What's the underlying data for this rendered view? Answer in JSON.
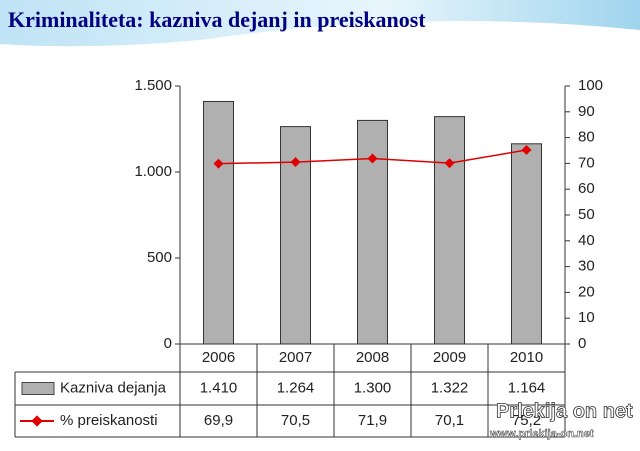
{
  "chart_data": {
    "type": "bar",
    "title": "Kriminaliteta: kazniva dejanj in preiskanost",
    "categories": [
      "2006",
      "2007",
      "2008",
      "2009",
      "2010"
    ],
    "series": [
      {
        "name": "Kazniva dejanja",
        "color": "#b0b0b0",
        "values": [
          1410,
          1264,
          1300,
          1322,
          1164
        ],
        "value_labels": [
          "1.410",
          "1.264",
          "1.300",
          "1.322",
          "1.164"
        ]
      },
      {
        "name": "% preiskanosti",
        "color": "#e00000",
        "type": "line",
        "axis": "y2",
        "values": [
          69.9,
          70.5,
          71.9,
          70.1,
          75.2
        ],
        "value_labels": [
          "69,9",
          "70,5",
          "71,9",
          "70,1",
          "75,2"
        ]
      }
    ],
    "ylim": [
      0,
      1500
    ],
    "yticks": [
      0,
      500,
      {
        "value": 1000,
        "label": "1.000"
      },
      {
        "value": 1500,
        "label": "1.500"
      }
    ],
    "y2lim": [
      0,
      100
    ],
    "y2ticks": [
      0,
      10,
      20,
      30,
      40,
      50,
      60,
      70,
      80,
      90,
      100
    ],
    "watermark": {
      "name": "Prlekija on net",
      "url": "www.prlekija-on.net"
    }
  }
}
